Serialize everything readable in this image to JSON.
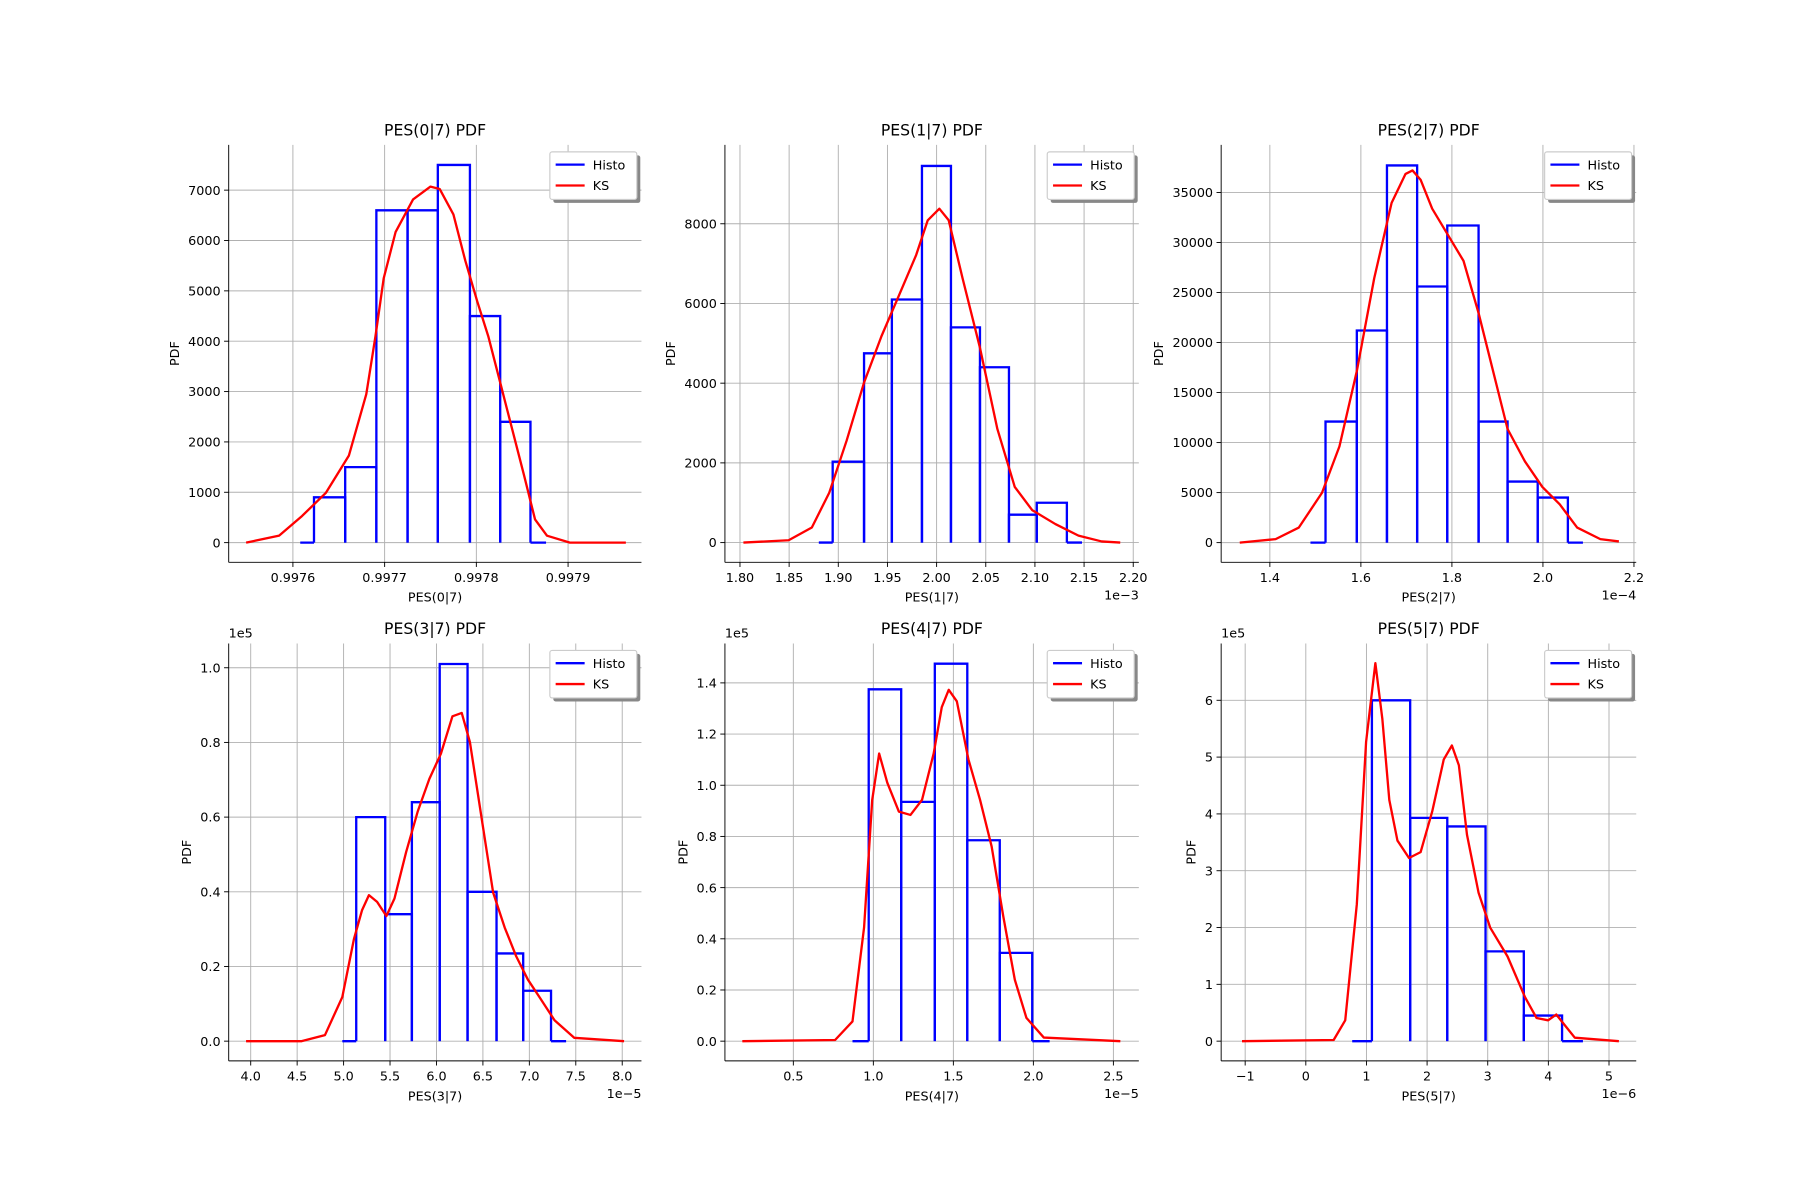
{
  "chart_data": [
    {
      "type": "histogram",
      "title": "PES(0|7) PDF",
      "x_label": "PES(0|7)",
      "y_label": "PDF",
      "bins": [
        0.997608,
        0.997623,
        0.997657,
        0.997691,
        0.997725,
        0.997758,
        0.997793,
        0.997826,
        0.997859,
        0.997876
      ],
      "series": [
        {
          "name": "Histo",
          "color": "#0000ff",
          "values": [
            0,
            900,
            1500,
            6600,
            6600,
            7500,
            4500,
            2400,
            0
          ]
        },
        {
          "name": "KS",
          "color": "#ff0000",
          "x": [
            0.997549,
            0.997585,
            0.99761,
            0.997636,
            0.997661,
            0.99768,
            0.99769,
            0.997699,
            0.997712,
            0.997731,
            0.99775,
            0.99776,
            0.997775,
            0.997788,
            0.997801,
            0.997813,
            0.997826,
            0.997839,
            0.997852,
            0.997864,
            0.997877,
            0.997902,
            0.997963
          ],
          "values": [
            0,
            138,
            530,
            990,
            1727,
            2947,
            4098,
            5250,
            6171,
            6816,
            7070,
            7024,
            6517,
            5596,
            4790,
            4099,
            3178,
            2257,
            1336,
            460,
            138,
            0,
            0
          ]
        }
      ],
      "xlim": [
        0.99753,
        0.99798
      ],
      "xticks": [
        0.9976,
        0.9977,
        0.9978,
        0.9979
      ],
      "ylim": [
        -391,
        7898
      ],
      "yticks": [
        0,
        1000,
        2000,
        3000,
        4000,
        5000,
        6000,
        7000
      ],
      "grid": true,
      "legend": "upper right"
    },
    {
      "type": "histogram",
      "title": "PES(1|7) PDF",
      "x_label": "PES(1|7)",
      "y_label": "PDF",
      "x_offset_text": "1e−3",
      "bins": [
        1.8802,
        1.8943,
        1.9262,
        1.9545,
        1.9851,
        2.0146,
        2.0441,
        2.0736,
        2.1019,
        2.1325,
        2.1479
      ],
      "series": [
        {
          "name": "Histo",
          "color": "#0000ff",
          "values": [
            0,
            2030,
            4750,
            6100,
            9450,
            5400,
            4400,
            700,
            1000,
            0
          ]
        },
        {
          "name": "KS",
          "color": "#ff0000",
          "x": [
            1.8035,
            1.8495,
            1.8731,
            1.8908,
            1.9085,
            1.9262,
            1.9439,
            1.9616,
            1.9792,
            1.991,
            2.0028,
            2.0123,
            2.0264,
            2.0441,
            2.0618,
            2.0795,
            2.0972,
            2.1208,
            2.1443,
            2.1679,
            2.1868
          ],
          "values": [
            0,
            58,
            378,
            1251,
            2560,
            4015,
            5178,
            6196,
            7215,
            8087,
            8378,
            8087,
            6633,
            4887,
            2851,
            1396,
            815,
            465,
            175,
            29,
            0
          ]
        }
      ],
      "xlim": [
        1.7847,
        2.2057
      ],
      "xticks": [
        {
          "value": 1.8,
          "label": "1.80"
        },
        1.85,
        {
          "value": 1.9,
          "label": "1.90"
        },
        1.95,
        {
          "value": 2,
          "label": "2.00"
        },
        2.05,
        {
          "value": 2.1,
          "label": "2.10"
        },
        2.15,
        {
          "value": 2.2,
          "label": "2.20"
        }
      ],
      "ylim": [
        -495,
        9978
      ],
      "yticks": [
        0,
        2000,
        4000,
        6000,
        8000
      ],
      "grid": true,
      "legend": "upper right"
    },
    {
      "type": "histogram",
      "title": "PES(2|7) PDF",
      "x_label": "PES(2|7)",
      "y_label": "PDF",
      "x_offset_text": "1e−4",
      "bins": [
        1.4892,
        1.5223,
        1.5911,
        1.6573,
        1.7236,
        1.7898,
        1.8586,
        1.9223,
        1.9885,
        2.0548,
        2.0879
      ],
      "series": [
        {
          "name": "Histo",
          "color": "#0000ff",
          "values": [
            0,
            12100,
            21200,
            37700,
            25600,
            31700,
            12100,
            6100,
            4500,
            0
          ]
        },
        {
          "name": "KS",
          "color": "#ff0000",
          "x": [
            1.3338,
            1.4127,
            1.4637,
            1.5146,
            1.5529,
            1.5911,
            1.6293,
            1.6675,
            1.6981,
            1.7134,
            1.7312,
            1.7567,
            1.7949,
            1.8255,
            1.8586,
            1.8968,
            1.9223,
            1.9605,
            1.9987,
            2.0369,
            2.0752,
            2.1261,
            2.1669
          ],
          "values": [
            0,
            348,
            1507,
            4983,
            9619,
            17152,
            26424,
            33957,
            36854,
            37202,
            36275,
            33377,
            30480,
            28162,
            22947,
            15993,
            11358,
            8113,
            5563,
            3825,
            1507,
            348,
            116
          ]
        }
      ],
      "xlim": [
        1.293,
        2.205
      ],
      "xticks": [
        1.4,
        1.6,
        1.8,
        {
          "value": 2,
          "label": "2.0"
        },
        2.2
      ],
      "ylim": [
        -1970,
        39752
      ],
      "yticks": [
        0,
        5000,
        10000,
        15000,
        20000,
        25000,
        30000,
        35000
      ],
      "grid": true,
      "legend": "upper right"
    },
    {
      "type": "histogram",
      "title": "PES(3|7) PDF",
      "x_label": "PES(3|7)",
      "y_label": "PDF",
      "x_offset_text": "1e−5",
      "y_offset_text": "1e5",
      "bins": [
        4.9863,
        5.1361,
        5.4482,
        5.7353,
        6.035,
        6.3346,
        6.6467,
        6.9338,
        7.2335,
        7.3958
      ],
      "series": [
        {
          "name": "Histo",
          "color": "#0000ff",
          "values": [
            0,
            0.6,
            0.34,
            0.64,
            1.01,
            0.4,
            0.235,
            0.135,
            0
          ]
        },
        {
          "name": "KS",
          "color": "#ff0000",
          "x": [
            3.95,
            4.549,
            4.799,
            4.986,
            5.111,
            5.199,
            5.273,
            5.361,
            5.461,
            5.548,
            5.673,
            5.798,
            5.923,
            6.048,
            6.172,
            6.272,
            6.36,
            6.485,
            6.61,
            6.735,
            6.859,
            6.984,
            7.109,
            7.271,
            7.483,
            8.02
          ],
          "values": [
            0,
            0,
            0.016,
            0.118,
            0.273,
            0.351,
            0.391,
            0.373,
            0.335,
            0.382,
            0.506,
            0.615,
            0.702,
            0.77,
            0.87,
            0.879,
            0.801,
            0.599,
            0.398,
            0.304,
            0.227,
            0.165,
            0.118,
            0.056,
            0.009,
            0
          ]
        }
      ],
      "xlim": [
        3.763,
        8.207
      ],
      "xticks": [
        {
          "value": 4,
          "label": "4.0"
        },
        4.5,
        {
          "value": 5,
          "label": "5.0"
        },
        5.5,
        {
          "value": 6,
          "label": "6.0"
        },
        6.5,
        {
          "value": 7,
          "label": "7.0"
        },
        7.5,
        {
          "value": 8,
          "label": "8.0"
        }
      ],
      "ylim": [
        -0.0528,
        1.065
      ],
      "yticks": [
        {
          "value": 0,
          "label": "0.0"
        },
        0.2,
        0.4,
        0.6,
        0.8,
        {
          "value": 1,
          "label": "1.0"
        }
      ],
      "grid": true,
      "legend": "upper right"
    },
    {
      "type": "histogram",
      "title": "PES(4|7) PDF",
      "x_label": "PES(4|7)",
      "y_label": "PDF",
      "x_offset_text": "1e−5",
      "y_offset_text": "1e5",
      "bins": [
        0.8696,
        0.971,
        1.1739,
        1.3841,
        1.587,
        1.7899,
        1.9928,
        2.1014
      ],
      "series": [
        {
          "name": "Histo",
          "color": "#0000ff",
          "values": [
            0,
            1.375,
            0.935,
            1.475,
            0.785,
            0.345,
            0
          ]
        },
        {
          "name": "KS",
          "color": "#ff0000",
          "x": [
            0.1812,
            0.7609,
            0.8696,
            0.942,
            0.9928,
            1.0362,
            1.087,
            1.1594,
            1.2319,
            1.3043,
            1.3768,
            1.4275,
            1.471,
            1.5217,
            1.5942,
            1.6667,
            1.7391,
            1.8116,
            1.8841,
            1.9565,
            2.0652,
            2.5435
          ],
          "values": [
            0,
            0.0045,
            0.077,
            0.444,
            0.942,
            1.124,
            1.01,
            0.897,
            0.884,
            0.943,
            1.124,
            1.305,
            1.373,
            1.328,
            1.101,
            0.943,
            0.761,
            0.489,
            0.24,
            0.091,
            0.014,
            0
          ]
        }
      ],
      "xlim": [
        0.0725,
        2.659
      ],
      "xticks": [
        0.5,
        {
          "value": 1,
          "label": "1.0"
        },
        1.5,
        {
          "value": 2,
          "label": "2.0"
        },
        2.5
      ],
      "ylim": [
        -0.077,
        1.554
      ],
      "yticks": [
        {
          "value": 0,
          "label": "0.0"
        },
        0.2,
        0.4,
        0.6,
        0.8,
        {
          "value": 1,
          "label": "1.0"
        },
        1.2,
        1.4
      ],
      "grid": true,
      "legend": "upper right"
    },
    {
      "type": "histogram",
      "title": "PES(5|7) PDF",
      "x_label": "PES(5|7)",
      "y_label": "PDF",
      "x_offset_text": "1e−6",
      "y_offset_text": "1e5",
      "bins": [
        0.765,
        1.09,
        1.721,
        2.333,
        2.964,
        3.595,
        4.226,
        4.57
      ],
      "series": [
        {
          "name": "Histo",
          "color": "#0000ff",
          "values": [
            0,
            6,
            3.93,
            3.78,
            1.58,
            0.45,
            0
          ]
        },
        {
          "name": "KS",
          "color": "#ff0000",
          "x": [
            -1.052,
            0.459,
            0.65,
            0.841,
            0.994,
            1.147,
            1.262,
            1.377,
            1.511,
            1.702,
            1.893,
            2.084,
            2.275,
            2.409,
            2.524,
            2.658,
            2.849,
            3.04,
            3.327,
            3.614,
            3.805,
            3.996,
            4.13,
            4.283,
            4.436,
            5.163
          ],
          "values": [
            0,
            0.02,
            0.367,
            2.408,
            5.265,
            6.653,
            5.673,
            4.245,
            3.531,
            3.224,
            3.327,
            4.041,
            4.959,
            5.204,
            4.857,
            3.633,
            2.612,
            2,
            1.49,
            0.776,
            0.408,
            0.367,
            0.469,
            0.265,
            0.061,
            0
          ]
        }
      ],
      "xlim": [
        -1.396,
        5.449
      ],
      "xticks": [
        {
          "value": -1,
          "label": "−1"
        },
        0,
        1,
        2,
        3,
        4,
        5
      ],
      "ylim": [
        -0.347,
        7.0
      ],
      "yticks": [
        0,
        1,
        2,
        3,
        4,
        5,
        6
      ],
      "grid": true,
      "legend": "upper right"
    }
  ]
}
